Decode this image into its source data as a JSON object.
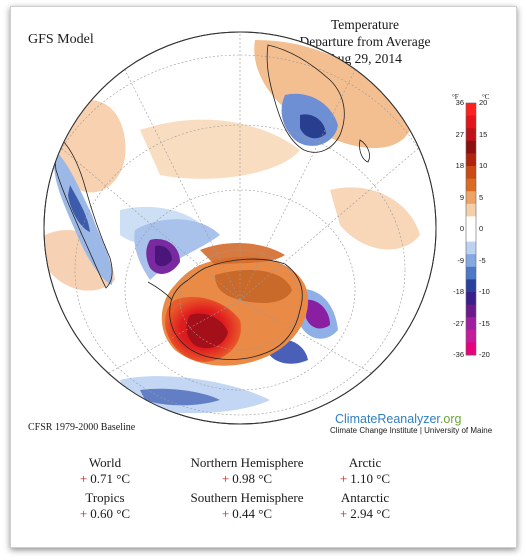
{
  "model": "GFS Model",
  "title_lines": [
    "Temperature",
    "Departure from Average",
    "Aug 29, 2014"
  ],
  "colorbar": {
    "unit_f": "°F",
    "unit_c": "°C",
    "f_labels": [
      "36",
      "27",
      "18",
      "9",
      "0",
      "-9",
      "-18",
      "-27",
      "-36"
    ],
    "c_labels": [
      "20",
      "15",
      "10",
      "5",
      "0",
      "-5",
      "-10",
      "-15",
      "-20"
    ],
    "colors": [
      "#e8007e",
      "#c61b9b",
      "#a01f9f",
      "#6a1a8a",
      "#3a1f8a",
      "#29419c",
      "#4c78c7",
      "#86a8e0",
      "#bcd2f2",
      "#ffffff",
      "#ffffff",
      "#f5cfa8",
      "#eea264",
      "#db6a22",
      "#c94a13",
      "#b1230d",
      "#8e0f10",
      "#c0111a",
      "#e4141c",
      "#ff2020"
    ]
  },
  "baseline": "CFSR 1979-2000 Baseline",
  "brand": {
    "part1": "ClimateReanalyzer",
    "part2": ".org"
  },
  "institution": "Climate Change Institute | University of Maine",
  "stats": [
    {
      "name": "World",
      "sign": "+",
      "value": "0.71 °C"
    },
    {
      "name": "Northern Hemisphere",
      "sign": "+",
      "value": "0.98 °C"
    },
    {
      "name": "Arctic",
      "sign": "+",
      "value": "1.10 °C"
    },
    {
      "name": "Tropics",
      "sign": "+",
      "value": "0.60 °C"
    },
    {
      "name": "Southern Hemisphere",
      "sign": "+",
      "value": "0.44 °C"
    },
    {
      "name": "Antarctic",
      "sign": "+",
      "value": "2.94 °C"
    }
  ]
}
